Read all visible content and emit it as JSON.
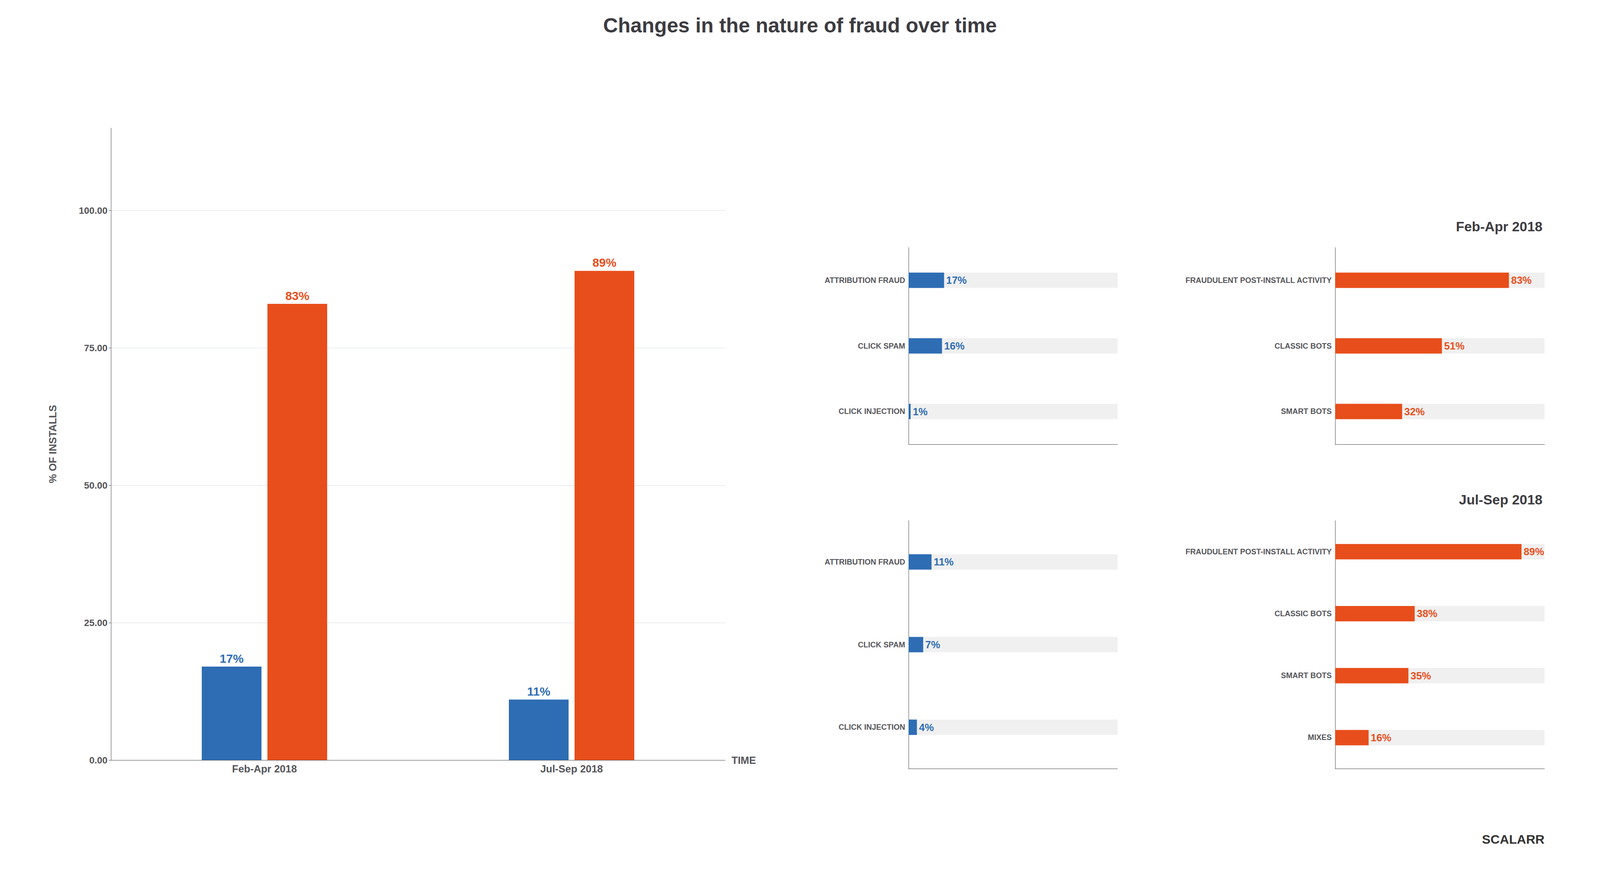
{
  "chart_data": [
    {
      "type": "bar",
      "title": "Changes in the nature of fraud over time",
      "xlabel": "TIME",
      "ylabel": "% OF INSTALLS",
      "categories": [
        "Feb-Apr 2018",
        "Jul-Sep 2018"
      ],
      "series": [
        {
          "color": "#2e6db4",
          "values": [
            17,
            11
          ],
          "value_labels": [
            "17%",
            "11%"
          ]
        },
        {
          "color": "#e84e1b",
          "values": [
            83,
            89
          ],
          "value_labels": [
            "83%",
            "89%"
          ]
        }
      ],
      "ylim": [
        0,
        115
      ],
      "yticks": [
        {
          "value": 0,
          "label": "0.00"
        },
        {
          "value": 25,
          "label": "25.00"
        },
        {
          "value": 50,
          "label": "50.00"
        },
        {
          "value": 75,
          "label": "75.00"
        },
        {
          "value": 100,
          "label": "100.00"
        }
      ],
      "grid": true,
      "data_labels": true,
      "annotations": [
        "SCALARR"
      ]
    },
    {
      "type": "bar",
      "orientation": "horizontal",
      "categories": [
        "ATTRIBUTION FRAUD",
        "CLICK SPAM",
        "CLICK INJECTION"
      ],
      "values": [
        17,
        16,
        1
      ],
      "value_labels": [
        "17%",
        "16%",
        "1%"
      ],
      "color": "#2e6db4",
      "xlim": [
        0,
        100
      ],
      "tick_labels": "y",
      "grid": false,
      "data_labels": true
    },
    {
      "type": "bar",
      "orientation": "horizontal",
      "title": "Feb-Apr 2018",
      "categories": [
        "FRAUDULENT POST-INSTALL ACTIVITY",
        "CLASSIC BOTS",
        "SMART BOTS"
      ],
      "values": [
        83,
        51,
        32
      ],
      "value_labels": [
        "83%",
        "51%",
        "32%"
      ],
      "color": "#e84e1b",
      "xlim": [
        0,
        100
      ],
      "tick_labels": "y",
      "grid": false,
      "data_labels": true
    },
    {
      "type": "bar",
      "orientation": "horizontal",
      "categories": [
        "ATTRIBUTION FRAUD",
        "CLICK SPAM",
        "CLICK INJECTION"
      ],
      "values": [
        11,
        7,
        4
      ],
      "value_labels": [
        "11%",
        "7%",
        "4%"
      ],
      "color": "#2e6db4",
      "xlim": [
        0,
        100
      ],
      "tick_labels": "y",
      "grid": false,
      "data_labels": true
    },
    {
      "type": "bar",
      "orientation": "horizontal",
      "title": "Jul-Sep 2018",
      "categories": [
        "FRAUDULENT POST-INSTALL ACTIVITY",
        "CLASSIC BOTS",
        "SMART BOTS",
        "MIXES"
      ],
      "values": [
        89,
        38,
        35,
        16
      ],
      "value_labels": [
        "89%",
        "38%",
        "35%",
        "16%"
      ],
      "color": "#e84e1b",
      "xlim": [
        0,
        100
      ],
      "tick_labels": "y",
      "grid": false,
      "data_labels": true
    }
  ]
}
